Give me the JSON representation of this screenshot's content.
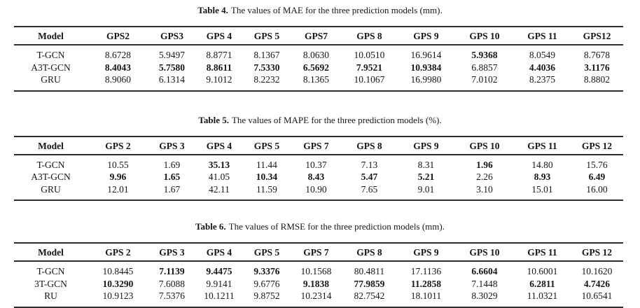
{
  "tables": [
    {
      "caption_label": "Table 4.",
      "caption_text": "The values of MAE for the three prediction models (mm).",
      "columns": [
        "Model",
        "GPS2",
        "GPS3",
        "GPS 4",
        "GPS 5",
        "GPS7",
        "GPS 8",
        "GPS 9",
        "GPS 10",
        "GPS 11",
        "GPS12"
      ],
      "rows": [
        {
          "model": "T-GCN",
          "values": [
            "8.6728",
            "5.9497",
            "8.8771",
            "8.1367",
            "8.0630",
            "10.0510",
            "16.9614",
            "5.9368",
            "8.0549",
            "8.7678"
          ],
          "bold": [
            0,
            0,
            0,
            0,
            0,
            0,
            0,
            1,
            0,
            0
          ]
        },
        {
          "model": "A3T-GCN",
          "values": [
            "8.4043",
            "5.7580",
            "8.8611",
            "7.5330",
            "6.5692",
            "7.9521",
            "10.9384",
            "6.8857",
            "4.4036",
            "3.1176"
          ],
          "bold": [
            1,
            1,
            1,
            1,
            1,
            1,
            1,
            0,
            1,
            1
          ]
        },
        {
          "model": "GRU",
          "values": [
            "8.9060",
            "6.1314",
            "9.1012",
            "8.2232",
            "8.1365",
            "10.1067",
            "16.9980",
            "7.0102",
            "8.2375",
            "8.8802"
          ],
          "bold": [
            0,
            0,
            0,
            0,
            0,
            0,
            0,
            0,
            0,
            0
          ]
        }
      ]
    },
    {
      "caption_label": "Table 5.",
      "caption_text": "The values of MAPE for the three prediction models (%).",
      "columns": [
        "Model",
        "GPS 2",
        "GPS 3",
        "GPS 4",
        "GPS 5",
        "GPS 7",
        "GPS 8",
        "GPS 9",
        "GPS 10",
        "GPS 11",
        "GPS 12"
      ],
      "rows": [
        {
          "model": "T-GCN",
          "values": [
            "10.55",
            "1.69",
            "35.13",
            "11.44",
            "10.37",
            "7.13",
            "8.31",
            "1.96",
            "14.80",
            "15.76"
          ],
          "bold": [
            0,
            0,
            1,
            0,
            0,
            0,
            0,
            1,
            0,
            0
          ]
        },
        {
          "model": "A3T-GCN",
          "values": [
            "9.96",
            "1.65",
            "41.05",
            "10.34",
            "8.43",
            "5.47",
            "5.21",
            "2.26",
            "8.93",
            "6.49"
          ],
          "bold": [
            1,
            1,
            0,
            1,
            1,
            1,
            1,
            0,
            1,
            1
          ]
        },
        {
          "model": "GRU",
          "values": [
            "12.01",
            "1.67",
            "42.11",
            "11.59",
            "10.90",
            "7.65",
            "9.01",
            "3.10",
            "15.01",
            "16.00"
          ],
          "bold": [
            0,
            0,
            0,
            0,
            0,
            0,
            0,
            0,
            0,
            0
          ]
        }
      ]
    },
    {
      "caption_label": "Table 6.",
      "caption_text": "The values of RMSE for the three prediction models (mm).",
      "columns": [
        "Model",
        "GPS 2",
        "GPS 3",
        "GPS 4",
        "GPS 5",
        "GPS 7",
        "GPS 8",
        "GPS 9",
        "GPS 10",
        "GPS 11",
        "GPS 12"
      ],
      "rows": [
        {
          "model": "T-GCN",
          "values": [
            "10.8445",
            "7.1139",
            "9.4475",
            "9.3376",
            "10.1568",
            "80.4811",
            "17.1136",
            "6.6604",
            "10.6001",
            "10.1620"
          ],
          "bold": [
            0,
            1,
            1,
            1,
            0,
            0,
            0,
            1,
            0,
            0
          ]
        },
        {
          "model": "3T-GCN",
          "values": [
            "10.3290",
            "7.6088",
            "9.9141",
            "9.6776",
            "9.1838",
            "77.9859",
            "11.2858",
            "7.1448",
            "6.2811",
            "4.7426"
          ],
          "bold": [
            1,
            0,
            0,
            0,
            1,
            1,
            1,
            0,
            1,
            1
          ]
        },
        {
          "model": "RU",
          "values": [
            "10.9123",
            "7.5376",
            "10.1211",
            "9.8752",
            "10.2314",
            "82.7542",
            "18.1011",
            "8.3029",
            "11.0321",
            "10.6541"
          ],
          "bold": [
            0,
            0,
            0,
            0,
            0,
            0,
            0,
            0,
            0,
            0
          ]
        }
      ]
    }
  ]
}
